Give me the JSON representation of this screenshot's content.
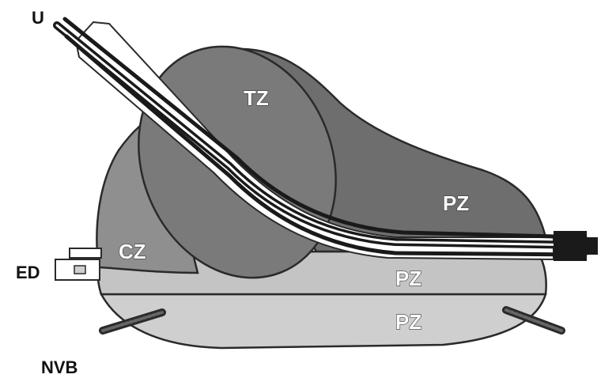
{
  "diagram": {
    "labels": {
      "urethra": "U",
      "transition_zone": "TZ",
      "central_zone": "CZ",
      "peripheral_zone_upper": "PZ",
      "peripheral_zone_middle": "PZ",
      "peripheral_zone_lower": "PZ",
      "ejaculatory_duct": "ED",
      "neurovascular_bundle": "NVB"
    },
    "colors": {
      "pz_dark": "#6e6e6e",
      "tz": "#7a7a7a",
      "cz": "#8f8f8f",
      "pz_light": "#c9c9c9",
      "outline": "#2a2a2a",
      "urethra_dark": "#1a1a1a",
      "urethra_light": "#ffffff",
      "background": "#ffffff"
    }
  }
}
